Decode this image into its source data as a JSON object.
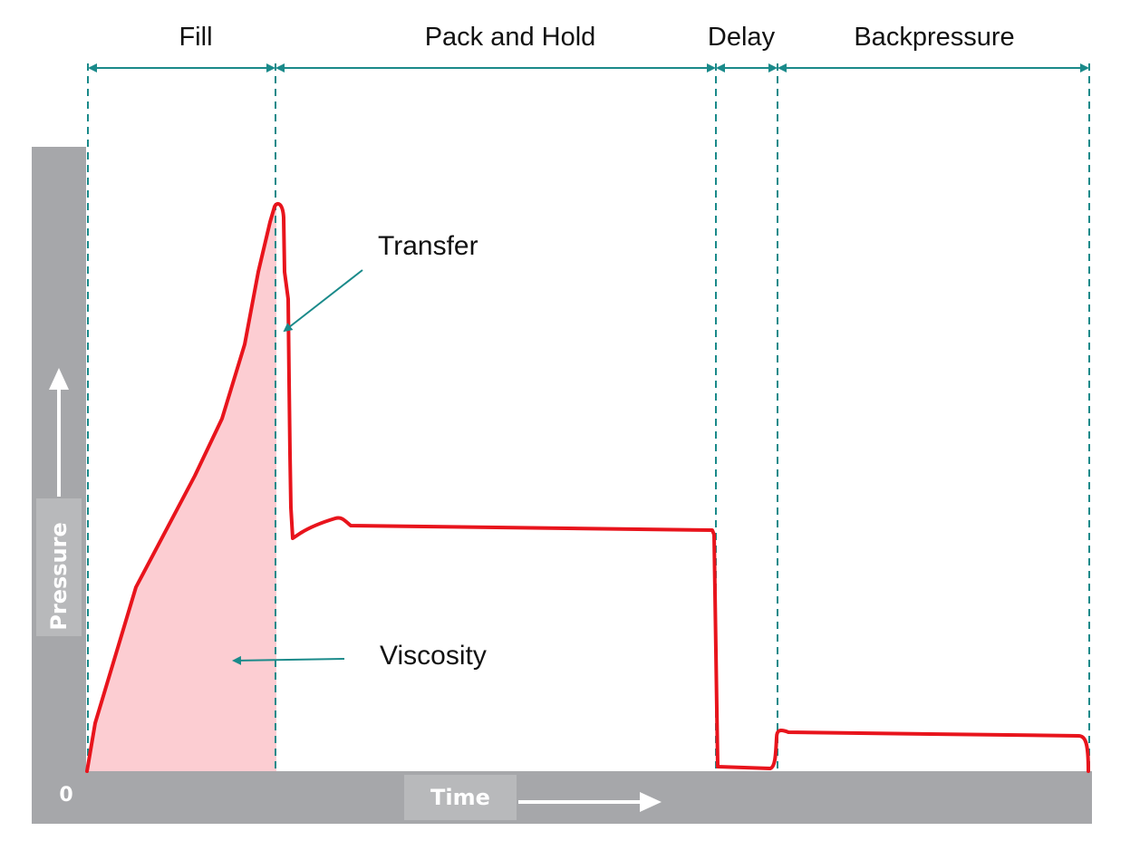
{
  "phases": [
    {
      "id": "fill",
      "label": "Fill"
    },
    {
      "id": "pack-hold",
      "label": "Pack and Hold"
    },
    {
      "id": "delay",
      "label": "Delay"
    },
    {
      "id": "backpressure",
      "label": "Backpressure"
    }
  ],
  "axes": {
    "x_label": "Time",
    "y_label": "Pressure",
    "origin_label": "0"
  },
  "annotations": {
    "transfer": "Transfer",
    "viscosity": "Viscosity"
  },
  "colors": {
    "accent": "#1a8a8a",
    "curve": "#e8141c",
    "fill_area": "#fccdd2",
    "axis_band": "#a6a7aa",
    "axis_text_bg": "#b8b9bb"
  }
}
